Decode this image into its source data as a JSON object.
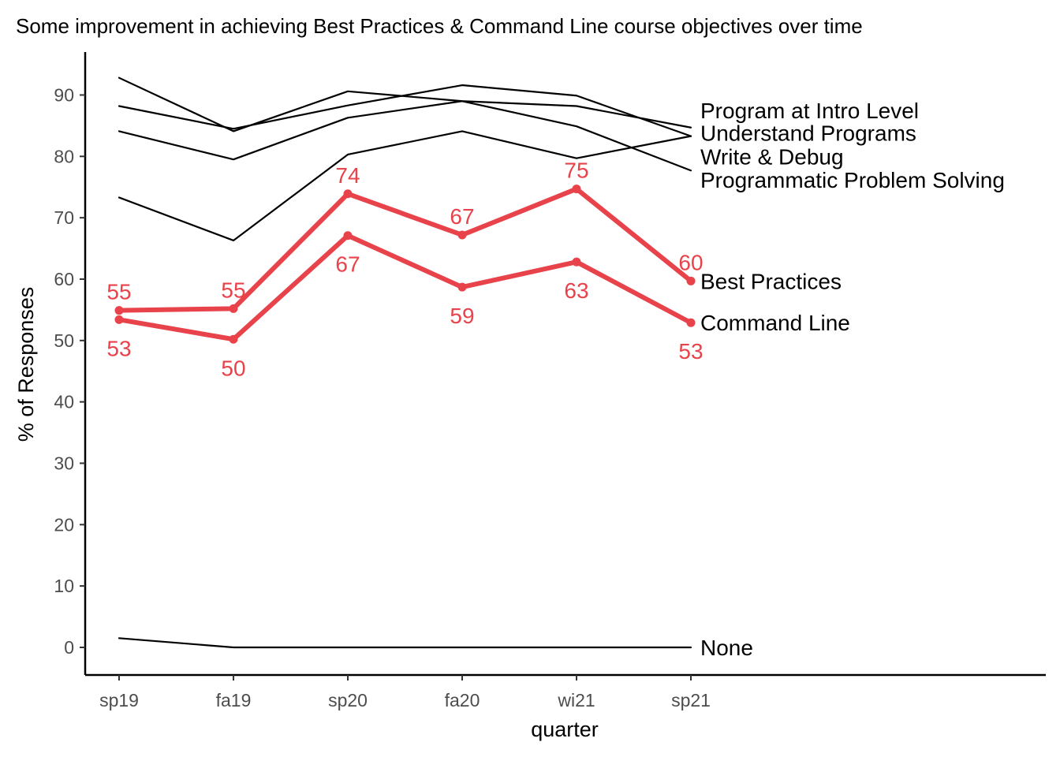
{
  "chart_data": {
    "type": "line",
    "title": "Some improvement in achieving Best Practices & Command Line course objectives over time",
    "xlabel": "quarter",
    "ylabel": "% of Responses",
    "categories": [
      "sp19",
      "fa19",
      "sp20",
      "fa20",
      "wi21",
      "sp21"
    ],
    "yticks": [
      0,
      10,
      20,
      30,
      40,
      50,
      60,
      70,
      80,
      90
    ],
    "ylim": [
      -4.5,
      97
    ],
    "grid": false,
    "legend": "direct labels at line ends",
    "highlight_color": "#e8424a",
    "base_color": "#000000",
    "series": [
      {
        "name": "Program at Intro Level",
        "values": [
          92.8,
          84.1,
          90.6,
          89.0,
          88.2,
          84.7
        ],
        "highlight": false,
        "label_y": 87.5
      },
      {
        "name": "Understand Programs",
        "values": [
          88.2,
          84.5,
          88.3,
          91.6,
          89.9,
          83.3
        ],
        "highlight": false,
        "label_y": 83.8
      },
      {
        "name": "Write & Debug",
        "values": [
          84.1,
          79.5,
          86.3,
          89.0,
          84.9,
          77.7
        ],
        "highlight": false,
        "label_y": 80.0
      },
      {
        "name": "Programmatic Problem Solving",
        "values": [
          73.3,
          66.3,
          80.3,
          84.1,
          79.7,
          83.3
        ],
        "highlight": false,
        "label_y": 76.2
      },
      {
        "name": "Best Practices",
        "values": [
          54.9,
          55.2,
          73.9,
          67.2,
          74.7,
          59.7
        ],
        "highlight": true,
        "label_y": 59.7
      },
      {
        "name": "Command Line",
        "values": [
          53.4,
          50.2,
          67.1,
          58.7,
          62.8,
          52.9
        ],
        "highlight": true,
        "label_y": 52.9
      },
      {
        "name": "None",
        "values": [
          1.5,
          0,
          0,
          0,
          0,
          0
        ],
        "highlight": false,
        "label_y": 0
      }
    ],
    "data_labels": [
      {
        "series": "Best Practices",
        "labels": [
          "55",
          "55",
          "74",
          "67",
          "75",
          "60"
        ],
        "position": "above"
      },
      {
        "series": "Command Line",
        "labels": [
          "53",
          "50",
          "67",
          "59",
          "63",
          "53"
        ],
        "position": "below"
      }
    ]
  }
}
